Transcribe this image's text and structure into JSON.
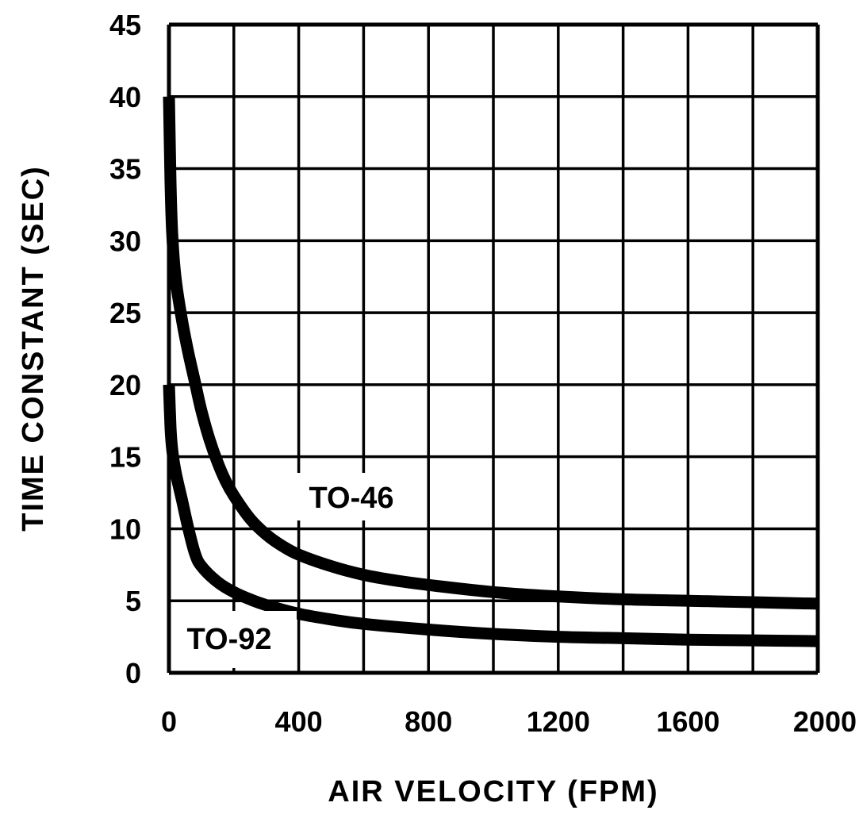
{
  "chart_data": {
    "type": "line",
    "title": "",
    "xlabel": "AIR VELOCITY (FPM)",
    "ylabel": "TIME CONSTANT (SEC)",
    "xlim": [
      0,
      2000
    ],
    "ylim": [
      0,
      45
    ],
    "grid": true,
    "x_ticks": [
      "0",
      "400",
      "800",
      "1200",
      "1600",
      "2000"
    ],
    "y_ticks": [
      "0",
      "5",
      "10",
      "15",
      "20",
      "25",
      "30",
      "35",
      "40",
      "45"
    ],
    "series": [
      {
        "name": "TO-46",
        "x": [
          0,
          5,
          10,
          20,
          40,
          60,
          80,
          100,
          125,
          150,
          175,
          200,
          250,
          300,
          350,
          400,
          500,
          600,
          700,
          800,
          1000,
          1200,
          1400,
          1600,
          1800,
          2000
        ],
        "y": [
          40,
          34,
          30.5,
          27.5,
          24.5,
          22.2,
          20.2,
          18.2,
          16.2,
          14.6,
          13.3,
          12.3,
          10.7,
          9.6,
          8.8,
          8.2,
          7.4,
          6.8,
          6.4,
          6.1,
          5.6,
          5.3,
          5.1,
          5.0,
          4.9,
          4.8
        ]
      },
      {
        "name": "TO-92",
        "x": [
          0,
          5,
          10,
          20,
          40,
          60,
          80,
          100,
          150,
          200,
          250,
          300,
          400,
          500,
          600,
          800,
          1000,
          1200,
          1400,
          1600,
          1800,
          2000
        ],
        "y": [
          20,
          17,
          15.5,
          14,
          12,
          10,
          8.3,
          7.4,
          6.3,
          5.6,
          5.1,
          4.7,
          4.1,
          3.7,
          3.4,
          3.0,
          2.7,
          2.5,
          2.4,
          2.3,
          2.25,
          2.2
        ]
      }
    ],
    "annotations": [
      {
        "text": "TO-46",
        "x": 400,
        "y": 12
      },
      {
        "text": "TO-92",
        "x": 50,
        "y": 2
      }
    ]
  }
}
